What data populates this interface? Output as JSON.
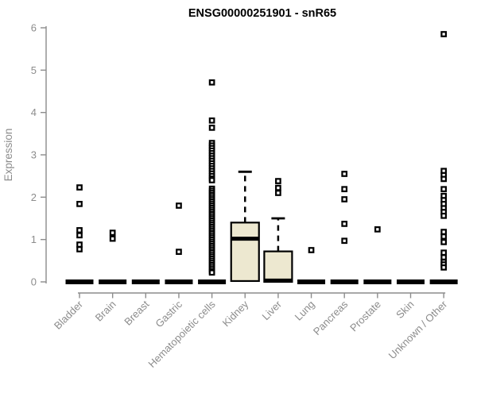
{
  "chart_data": {
    "type": "box",
    "title": "ENSG00000251901 - snR65",
    "ylabel": "Expression",
    "xlabel": "",
    "ylim": [
      0,
      6
    ],
    "yticks": [
      0,
      1,
      2,
      3,
      4,
      5,
      6
    ],
    "grid": false,
    "legend": false,
    "categories": [
      "Bladder",
      "Brain",
      "Breast",
      "Gastric",
      "Hematopoietic cells",
      "Kidney",
      "Liver",
      "Lung",
      "Pancreas",
      "Prostate",
      "Skin",
      "Unknown / Other"
    ],
    "boxes": [
      {
        "category": "Bladder",
        "q1": 0,
        "median": 0,
        "q3": 0,
        "whisker_low": 0,
        "whisker_high": 0,
        "outliers": [
          2.23,
          1.84,
          1.22,
          1.1,
          0.88,
          0.77
        ]
      },
      {
        "category": "Brain",
        "q1": 0,
        "median": 0,
        "q3": 0,
        "whisker_low": 0,
        "whisker_high": 0,
        "outliers": [
          1.16,
          1.02
        ]
      },
      {
        "category": "Breast",
        "q1": 0,
        "median": 0,
        "q3": 0,
        "whisker_low": 0,
        "whisker_high": 0,
        "outliers": []
      },
      {
        "category": "Gastric",
        "q1": 0,
        "median": 0,
        "q3": 0,
        "whisker_low": 0,
        "whisker_high": 0,
        "outliers": [
          1.8,
          0.71
        ]
      },
      {
        "category": "Hematopoietic cells",
        "q1": 0,
        "median": 0,
        "q3": 0,
        "whisker_low": 0,
        "whisker_high": 0,
        "outliers": [
          4.71,
          3.81,
          3.64,
          3.28,
          3.22,
          3.16,
          3.1,
          3.04,
          2.98,
          2.92,
          2.86,
          2.8,
          2.74,
          2.68,
          2.62,
          2.56,
          2.5,
          2.44,
          2.4,
          2.2,
          2.15,
          2.1,
          2.05,
          2.0,
          1.95,
          1.9,
          1.85,
          1.8,
          1.75,
          1.7,
          1.65,
          1.6,
          1.55,
          1.5,
          1.45,
          1.4,
          1.35,
          1.3,
          1.25,
          1.2,
          1.15,
          1.1,
          1.05,
          1.0,
          0.95,
          0.9,
          0.85,
          0.8,
          0.75,
          0.7,
          0.65,
          0.6,
          0.55,
          0.5,
          0.45,
          0.4,
          0.35,
          0.3,
          0.25,
          0.22
        ]
      },
      {
        "category": "Kidney",
        "q1": 0.02,
        "median": 1.02,
        "q3": 1.4,
        "whisker_low": 0.02,
        "whisker_high": 2.6,
        "outliers": []
      },
      {
        "category": "Liver",
        "q1": 0,
        "median": 0.03,
        "q3": 0.72,
        "whisker_low": 0,
        "whisker_high": 1.5,
        "outliers": [
          2.38,
          2.22,
          2.1
        ]
      },
      {
        "category": "Lung",
        "q1": 0,
        "median": 0,
        "q3": 0,
        "whisker_low": 0,
        "whisker_high": 0,
        "outliers": [
          0.75
        ]
      },
      {
        "category": "Pancreas",
        "q1": 0,
        "median": 0,
        "q3": 0,
        "whisker_low": 0,
        "whisker_high": 0,
        "outliers": [
          2.55,
          2.19,
          1.95,
          1.37,
          0.97
        ]
      },
      {
        "category": "Prostate",
        "q1": 0,
        "median": 0,
        "q3": 0,
        "whisker_low": 0,
        "whisker_high": 0,
        "outliers": [
          1.24
        ]
      },
      {
        "category": "Skin",
        "q1": 0,
        "median": 0,
        "q3": 0,
        "whisker_low": 0,
        "whisker_high": 0,
        "outliers": []
      },
      {
        "category": "Unknown / Other",
        "q1": 0,
        "median": 0,
        "q3": 0,
        "whisker_low": 0,
        "whisker_high": 0,
        "outliers": [
          5.85,
          2.62,
          2.52,
          2.43,
          2.19,
          2.03,
          1.93,
          1.84,
          1.74,
          1.65,
          1.56,
          1.18,
          1.07,
          0.94,
          0.69,
          0.58,
          0.47,
          0.41,
          0.34
        ]
      }
    ],
    "colors": {
      "box_fill": "#EDE8D0",
      "box_stroke": "#000000",
      "median": "#000000",
      "whisker": "#000000",
      "outlier_stroke": "#000000",
      "outlier_fill": "#FFFFFF",
      "axis": "#8C8C8C",
      "tick_label": "#8C8C8C",
      "title": "#000000",
      "background": "#FFFFFF"
    }
  }
}
